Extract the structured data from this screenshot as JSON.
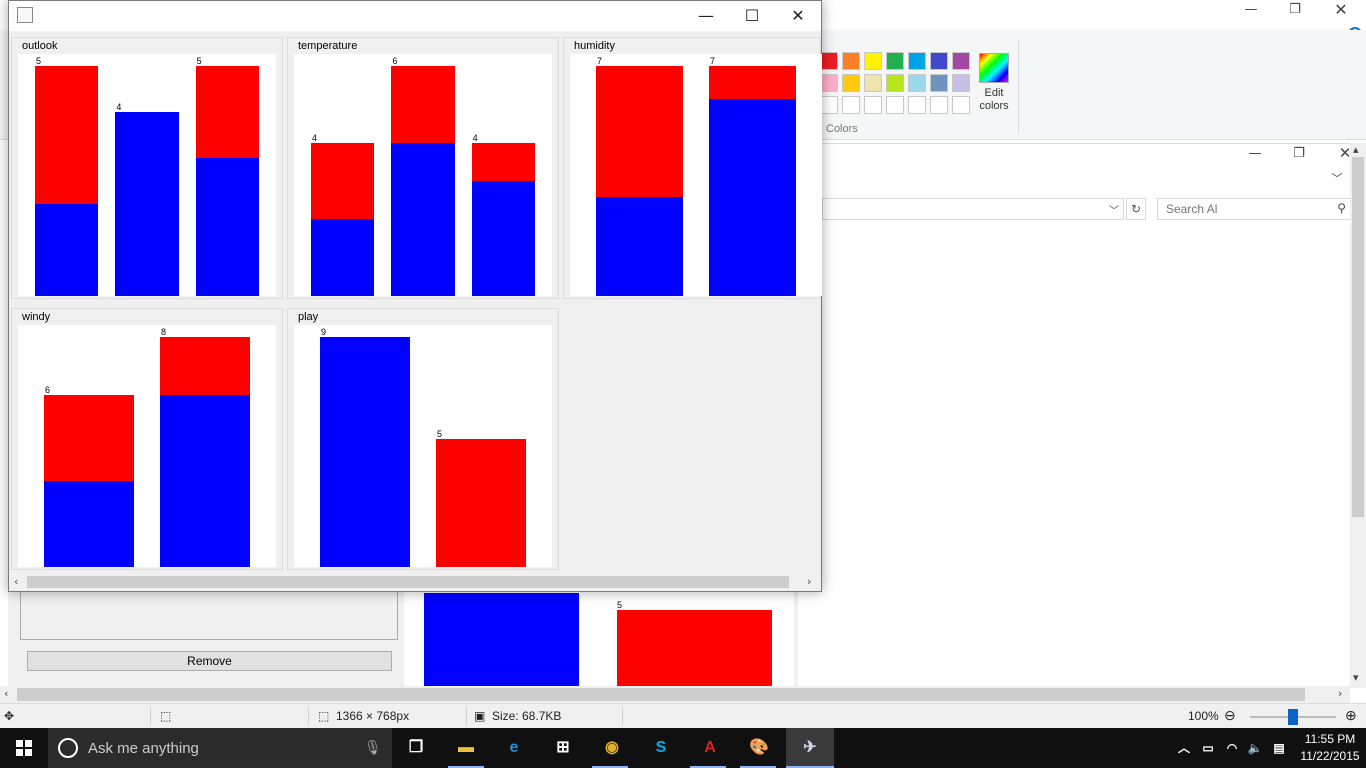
{
  "paint": {
    "colors_label": "Colors",
    "edit_colors_label": "Edit colors",
    "palette_row1": [
      "#ed1c24",
      "#ff7f27",
      "#fff200",
      "#22b14c",
      "#00a2e8",
      "#3f48cc",
      "#a349a4"
    ],
    "palette_row2": [
      "#ffaec9",
      "#ffc90e",
      "#efe4b0",
      "#b5e61d",
      "#99d9ea",
      "#7092be",
      "#c8bfe7"
    ],
    "status": {
      "dimensions": "1366 × 768px",
      "size": "Size: 68.7KB",
      "zoom": "100%"
    }
  },
  "explorer": {
    "search_placeholder": "Search Al"
  },
  "back_panel": {
    "remove_label": "Remove",
    "chart_label": "5"
  },
  "taskbar": {
    "search_placeholder": "Ask me anything",
    "time": "11:55 PM",
    "date": "11/22/2015"
  },
  "java_window": {
    "title": ""
  },
  "chart_data": [
    {
      "type": "bar",
      "stacked": true,
      "title": "outlook",
      "categories": [
        "",
        "",
        ""
      ],
      "totals": [
        5,
        4,
        5
      ],
      "series": [
        {
          "color": "#0000ff",
          "values": [
            2,
            4,
            3
          ]
        },
        {
          "color": "#ff0000",
          "values": [
            3,
            0,
            2
          ]
        }
      ],
      "ylim": [
        0,
        5
      ]
    },
    {
      "type": "bar",
      "stacked": true,
      "title": "temperature",
      "categories": [
        "",
        "",
        ""
      ],
      "totals": [
        4,
        6,
        4
      ],
      "series": [
        {
          "color": "#0000ff",
          "values": [
            2,
            4,
            3
          ]
        },
        {
          "color": "#ff0000",
          "values": [
            2,
            2,
            1
          ]
        }
      ],
      "ylim": [
        0,
        6
      ]
    },
    {
      "type": "bar",
      "stacked": true,
      "title": "humidity",
      "categories": [
        "",
        ""
      ],
      "totals": [
        7,
        7
      ],
      "series": [
        {
          "color": "#0000ff",
          "values": [
            3,
            6
          ]
        },
        {
          "color": "#ff0000",
          "values": [
            4,
            1
          ]
        }
      ],
      "ylim": [
        0,
        7
      ]
    },
    {
      "type": "bar",
      "stacked": true,
      "title": "windy",
      "categories": [
        "",
        ""
      ],
      "totals": [
        6,
        8
      ],
      "series": [
        {
          "color": "#0000ff",
          "values": [
            3,
            6
          ]
        },
        {
          "color": "#ff0000",
          "values": [
            3,
            2
          ]
        }
      ],
      "ylim": [
        0,
        8
      ]
    },
    {
      "type": "bar",
      "stacked": true,
      "title": "play",
      "categories": [
        "",
        ""
      ],
      "totals": [
        9,
        5
      ],
      "series": [
        {
          "color": "#0000ff",
          "values": [
            9,
            0
          ]
        },
        {
          "color": "#ff0000",
          "values": [
            0,
            5
          ]
        }
      ],
      "ylim": [
        0,
        9
      ]
    }
  ]
}
